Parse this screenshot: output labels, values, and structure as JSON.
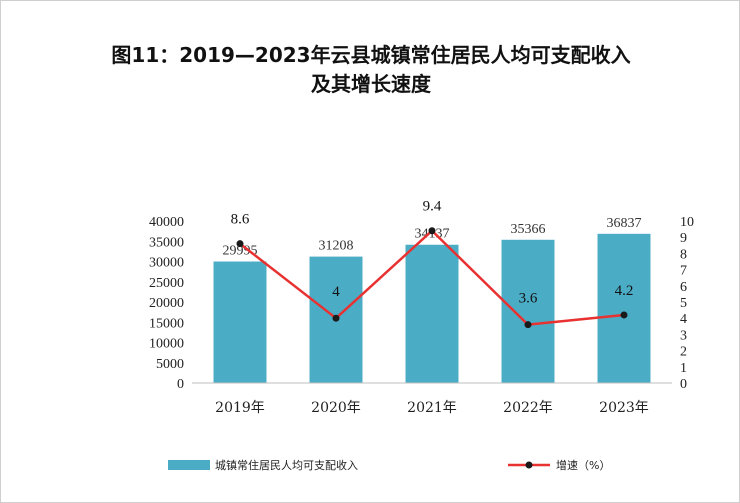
{
  "title_line1": "图11：2019—2023年云县城镇常住居民人均可支配收入",
  "title_line2": "及其增长速度",
  "colors": {
    "bar": "#4bacc6",
    "line": "#e83232",
    "marker": "#1a1a1a"
  },
  "chart_data": {
    "type": "bar+line",
    "categories": [
      "2019年",
      "2020年",
      "2021年",
      "2022年",
      "2023年"
    ],
    "bar_series": {
      "name": "城镇常住居民人均可支配收入",
      "values": [
        29995,
        31208,
        34137,
        35366,
        36837
      ]
    },
    "line_series": {
      "name": "增速（%）",
      "values": [
        8.6,
        4,
        9.4,
        3.6,
        4.2
      ]
    },
    "y_left": {
      "min": 0,
      "max": 40000,
      "step": 5000
    },
    "y_right": {
      "min": 0,
      "max": 10,
      "step": 1
    },
    "grid": false,
    "legend_position": "bottom"
  }
}
